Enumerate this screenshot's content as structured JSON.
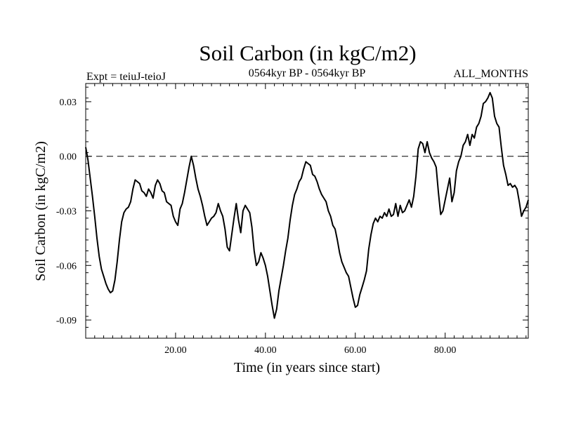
{
  "chart_data": {
    "type": "line",
    "title": "Soil Carbon (in kgC/m2)",
    "subtitle": "0564kyr BP - 0564kyr BP",
    "left_label": "Expt = teiuJ-teioJ",
    "right_label": "ALL_MONTHS",
    "xlabel": "Time (in years since start)",
    "ylabel": "Soil Carbon (in kgC/m2)",
    "xlim": [
      0,
      98.5
    ],
    "ylim": [
      -0.1,
      0.04
    ],
    "xticks": [
      20,
      40,
      60,
      80
    ],
    "xtick_labels": [
      "20.00",
      "40.00",
      "60.00",
      "80.00"
    ],
    "yticks": [
      0.03,
      0.0,
      -0.03,
      -0.06,
      -0.09
    ],
    "ytick_labels": [
      "0.03",
      "0.00",
      "-0.03",
      "-0.06",
      "-0.09"
    ],
    "reference_line": {
      "y": 0.0,
      "style": "dashed"
    },
    "grid": false,
    "series": [
      {
        "points": [
          [
            0.0,
            0.005
          ],
          [
            0.5,
            -0.002
          ],
          [
            1.0,
            -0.012
          ],
          [
            1.5,
            -0.022
          ],
          [
            2.0,
            -0.033
          ],
          [
            2.5,
            -0.045
          ],
          [
            3.0,
            -0.055
          ],
          [
            3.5,
            -0.062
          ],
          [
            4.0,
            -0.066
          ],
          [
            4.5,
            -0.07
          ],
          [
            5.0,
            -0.073
          ],
          [
            5.5,
            -0.075
          ],
          [
            6.0,
            -0.074
          ],
          [
            6.5,
            -0.068
          ],
          [
            7.0,
            -0.058
          ],
          [
            7.5,
            -0.046
          ],
          [
            8.0,
            -0.036
          ],
          [
            8.5,
            -0.031
          ],
          [
            9.0,
            -0.029
          ],
          [
            9.5,
            -0.028
          ],
          [
            10.0,
            -0.025
          ],
          [
            10.5,
            -0.018
          ],
          [
            11.0,
            -0.013
          ],
          [
            11.5,
            -0.014
          ],
          [
            12.0,
            -0.015
          ],
          [
            12.5,
            -0.019
          ],
          [
            13.0,
            -0.02
          ],
          [
            13.5,
            -0.022
          ],
          [
            14.0,
            -0.018
          ],
          [
            14.5,
            -0.02
          ],
          [
            15.0,
            -0.023
          ],
          [
            15.5,
            -0.016
          ],
          [
            16.0,
            -0.013
          ],
          [
            16.5,
            -0.015
          ],
          [
            17.0,
            -0.019
          ],
          [
            17.5,
            -0.02
          ],
          [
            18.0,
            -0.025
          ],
          [
            18.5,
            -0.026
          ],
          [
            19.0,
            -0.027
          ],
          [
            19.5,
            -0.033
          ],
          [
            20.0,
            -0.036
          ],
          [
            20.5,
            -0.038
          ],
          [
            21.0,
            -0.029
          ],
          [
            21.5,
            -0.026
          ],
          [
            22.0,
            -0.02
          ],
          [
            22.5,
            -0.013
          ],
          [
            23.0,
            -0.006
          ],
          [
            23.5,
            0.0
          ],
          [
            24.0,
            -0.005
          ],
          [
            24.5,
            -0.012
          ],
          [
            25.0,
            -0.018
          ],
          [
            25.5,
            -0.022
          ],
          [
            26.0,
            -0.027
          ],
          [
            26.5,
            -0.033
          ],
          [
            27.0,
            -0.038
          ],
          [
            27.5,
            -0.036
          ],
          [
            28.0,
            -0.034
          ],
          [
            28.5,
            -0.033
          ],
          [
            29.0,
            -0.031
          ],
          [
            29.5,
            -0.026
          ],
          [
            30.0,
            -0.03
          ],
          [
            30.5,
            -0.033
          ],
          [
            31.0,
            -0.04
          ],
          [
            31.5,
            -0.05
          ],
          [
            32.0,
            -0.052
          ],
          [
            32.5,
            -0.043
          ],
          [
            33.0,
            -0.034
          ],
          [
            33.5,
            -0.026
          ],
          [
            34.0,
            -0.035
          ],
          [
            34.5,
            -0.042
          ],
          [
            35.0,
            -0.03
          ],
          [
            35.5,
            -0.027
          ],
          [
            36.0,
            -0.029
          ],
          [
            36.5,
            -0.031
          ],
          [
            37.0,
            -0.039
          ],
          [
            37.5,
            -0.052
          ],
          [
            38.0,
            -0.06
          ],
          [
            38.5,
            -0.058
          ],
          [
            39.0,
            -0.053
          ],
          [
            39.5,
            -0.056
          ],
          [
            40.0,
            -0.06
          ],
          [
            40.5,
            -0.066
          ],
          [
            41.0,
            -0.074
          ],
          [
            41.5,
            -0.082
          ],
          [
            42.0,
            -0.089
          ],
          [
            42.5,
            -0.084
          ],
          [
            43.0,
            -0.074
          ],
          [
            43.5,
            -0.067
          ],
          [
            44.0,
            -0.06
          ],
          [
            44.5,
            -0.052
          ],
          [
            45.0,
            -0.045
          ],
          [
            45.5,
            -0.035
          ],
          [
            46.0,
            -0.027
          ],
          [
            46.5,
            -0.021
          ],
          [
            47.0,
            -0.018
          ],
          [
            47.5,
            -0.014
          ],
          [
            48.0,
            -0.012
          ],
          [
            48.5,
            -0.007
          ],
          [
            49.0,
            -0.003
          ],
          [
            49.5,
            -0.004
          ],
          [
            50.0,
            -0.005
          ],
          [
            50.5,
            -0.01
          ],
          [
            51.0,
            -0.011
          ],
          [
            51.5,
            -0.014
          ],
          [
            52.0,
            -0.018
          ],
          [
            52.5,
            -0.021
          ],
          [
            53.0,
            -0.023
          ],
          [
            53.5,
            -0.025
          ],
          [
            54.0,
            -0.03
          ],
          [
            54.5,
            -0.033
          ],
          [
            55.0,
            -0.038
          ],
          [
            55.5,
            -0.04
          ],
          [
            56.0,
            -0.046
          ],
          [
            56.5,
            -0.053
          ],
          [
            57.0,
            -0.058
          ],
          [
            57.5,
            -0.061
          ],
          [
            58.0,
            -0.064
          ],
          [
            58.5,
            -0.066
          ],
          [
            59.0,
            -0.072
          ],
          [
            59.5,
            -0.078
          ],
          [
            60.0,
            -0.083
          ],
          [
            60.5,
            -0.082
          ],
          [
            61.0,
            -0.076
          ],
          [
            61.5,
            -0.072
          ],
          [
            62.0,
            -0.068
          ],
          [
            62.5,
            -0.063
          ],
          [
            63.0,
            -0.051
          ],
          [
            63.5,
            -0.043
          ],
          [
            64.0,
            -0.037
          ],
          [
            64.5,
            -0.034
          ],
          [
            65.0,
            -0.036
          ],
          [
            65.5,
            -0.033
          ],
          [
            66.0,
            -0.034
          ],
          [
            66.5,
            -0.031
          ],
          [
            67.0,
            -0.033
          ],
          [
            67.5,
            -0.029
          ],
          [
            68.0,
            -0.033
          ],
          [
            68.5,
            -0.032
          ],
          [
            69.0,
            -0.026
          ],
          [
            69.5,
            -0.033
          ],
          [
            70.0,
            -0.027
          ],
          [
            70.5,
            -0.031
          ],
          [
            71.0,
            -0.03
          ],
          [
            71.5,
            -0.027
          ],
          [
            72.0,
            -0.024
          ],
          [
            72.5,
            -0.028
          ],
          [
            73.0,
            -0.022
          ],
          [
            73.5,
            -0.011
          ],
          [
            74.0,
            0.004
          ],
          [
            74.5,
            0.008
          ],
          [
            75.0,
            0.007
          ],
          [
            75.5,
            0.002
          ],
          [
            76.0,
            0.008
          ],
          [
            76.5,
            0.002
          ],
          [
            77.0,
            -0.001
          ],
          [
            77.5,
            -0.003
          ],
          [
            78.0,
            -0.006
          ],
          [
            78.5,
            -0.02
          ],
          [
            79.0,
            -0.032
          ],
          [
            79.5,
            -0.03
          ],
          [
            80.0,
            -0.024
          ],
          [
            80.5,
            -0.018
          ],
          [
            81.0,
            -0.012
          ],
          [
            81.5,
            -0.025
          ],
          [
            82.0,
            -0.02
          ],
          [
            82.5,
            -0.008
          ],
          [
            83.0,
            -0.003
          ],
          [
            83.5,
            0.0
          ],
          [
            84.0,
            0.006
          ],
          [
            84.5,
            0.008
          ],
          [
            85.0,
            0.012
          ],
          [
            85.5,
            0.006
          ],
          [
            86.0,
            0.012
          ],
          [
            86.5,
            0.01
          ],
          [
            87.0,
            0.016
          ],
          [
            87.5,
            0.018
          ],
          [
            88.0,
            0.022
          ],
          [
            88.5,
            0.029
          ],
          [
            89.0,
            0.03
          ],
          [
            89.5,
            0.032
          ],
          [
            90.0,
            0.035
          ],
          [
            90.5,
            0.032
          ],
          [
            91.0,
            0.022
          ],
          [
            91.5,
            0.018
          ],
          [
            92.0,
            0.016
          ],
          [
            92.5,
            0.005
          ],
          [
            93.0,
            -0.005
          ],
          [
            93.5,
            -0.01
          ],
          [
            94.0,
            -0.016
          ],
          [
            94.5,
            -0.015
          ],
          [
            95.0,
            -0.017
          ],
          [
            95.5,
            -0.016
          ],
          [
            96.0,
            -0.018
          ],
          [
            96.5,
            -0.025
          ],
          [
            97.0,
            -0.033
          ],
          [
            97.5,
            -0.03
          ],
          [
            98.0,
            -0.028
          ],
          [
            98.5,
            -0.024
          ]
        ]
      }
    ]
  }
}
